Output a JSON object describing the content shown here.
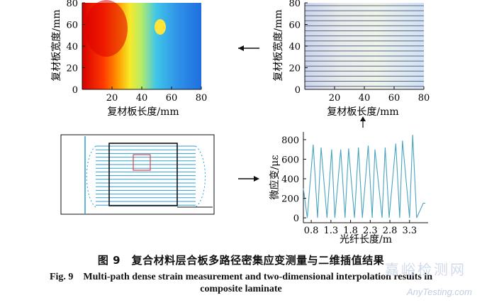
{
  "colors": {
    "curve": "#4aa3c0",
    "fiber": "#2f9fd0",
    "grid": "#555",
    "frame": "#111",
    "box": "#d84040"
  },
  "heatmap": {
    "xlabel": "复材板长度/mm",
    "ylabel": "复材板宽度/mm",
    "xticks": [
      "20",
      "40",
      "60",
      "80"
    ],
    "yticks": [
      "80",
      "60",
      "40",
      "20",
      "0"
    ],
    "xlim": [
      0,
      80
    ],
    "ylim": [
      0,
      80
    ]
  },
  "lines_plot": {
    "xlabel": "复材板长度/mm",
    "ylabel": "复材板宽度/mm",
    "xticks": [
      "20",
      "40",
      "60",
      "80"
    ],
    "yticks": [
      "80",
      "60",
      "40",
      "20",
      "0"
    ],
    "xlim": [
      0,
      80
    ],
    "ylim": [
      0,
      80
    ]
  },
  "chart_data": {
    "type": "line",
    "xlabel": "光纤长度/m",
    "ylabel": "微应变/με",
    "xlim": [
      0.6,
      3.7
    ],
    "ylim": [
      -50,
      850
    ],
    "xticks": [
      "0.8",
      "1.3",
      "1.8",
      "2.3",
      "2.8",
      "3.3"
    ],
    "yticks": [
      "800",
      "600",
      "400",
      "200",
      "0"
    ],
    "x": [
      0.6,
      0.7,
      0.85,
      0.96,
      1.05,
      1.2,
      1.32,
      1.4,
      1.55,
      1.66,
      1.75,
      1.9,
      2.0,
      2.1,
      2.25,
      2.35,
      2.42,
      2.6,
      2.68,
      2.78,
      2.95,
      3.05,
      3.12,
      3.3,
      3.38,
      3.48,
      3.65,
      3.7
    ],
    "values": [
      300,
      0,
      750,
      0,
      720,
      0,
      700,
      0,
      700,
      0,
      710,
      0,
      720,
      0,
      740,
      0,
      700,
      0,
      720,
      0,
      760,
      0,
      790,
      0,
      850,
      0,
      150,
      150
    ]
  },
  "caption": {
    "cn": "图 9　复合材料层合板多路径密集应变测量与二维插值结果",
    "en1": "Fig. 9　Multi-path dense strain measurement and two-dimensional interpolation results in",
    "en2": "composite laminate"
  },
  "watermark": {
    "cn": "嘉峪检测网",
    "en": "AnyTesting.com"
  }
}
